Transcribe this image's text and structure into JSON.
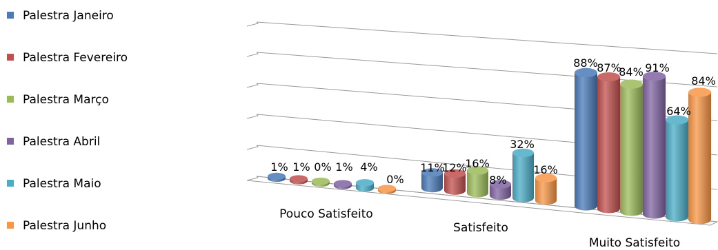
{
  "chart_data": {
    "type": "bar",
    "style": "3d-column-perspective",
    "legend_position": "left",
    "grid": true,
    "ylim": [
      0,
      100
    ],
    "categories": [
      "Pouco Satisfeito",
      "Satisfeito",
      "Muito Satisfeito"
    ],
    "series": [
      {
        "name": "Palestra Janeiro",
        "color": "#4a7ab8",
        "values": [
          1,
          11,
          88
        ],
        "labels": [
          "1%",
          "11%",
          "88%"
        ]
      },
      {
        "name": "Palestra Fevereiro",
        "color": "#c0504d",
        "values": [
          1,
          12,
          87
        ],
        "labels": [
          "1%",
          "12%",
          "87%"
        ]
      },
      {
        "name": "Palestra Março",
        "color": "#9bbb59",
        "values": [
          0,
          16,
          84
        ],
        "labels": [
          "0%",
          "16%",
          "84%"
        ]
      },
      {
        "name": "Palestra Abril",
        "color": "#8064a2",
        "values": [
          1,
          8,
          91
        ],
        "labels": [
          "1%",
          "8%",
          "91%"
        ]
      },
      {
        "name": "Palestra Maio",
        "color": "#4bacc6",
        "values": [
          4,
          32,
          64
        ],
        "labels": [
          "4%",
          "32%",
          "64%"
        ]
      },
      {
        "name": "Palestra Junho",
        "color": "#f79646",
        "values": [
          0,
          16,
          84
        ],
        "labels": [
          "0%",
          "16%",
          "84%"
        ]
      }
    ]
  }
}
